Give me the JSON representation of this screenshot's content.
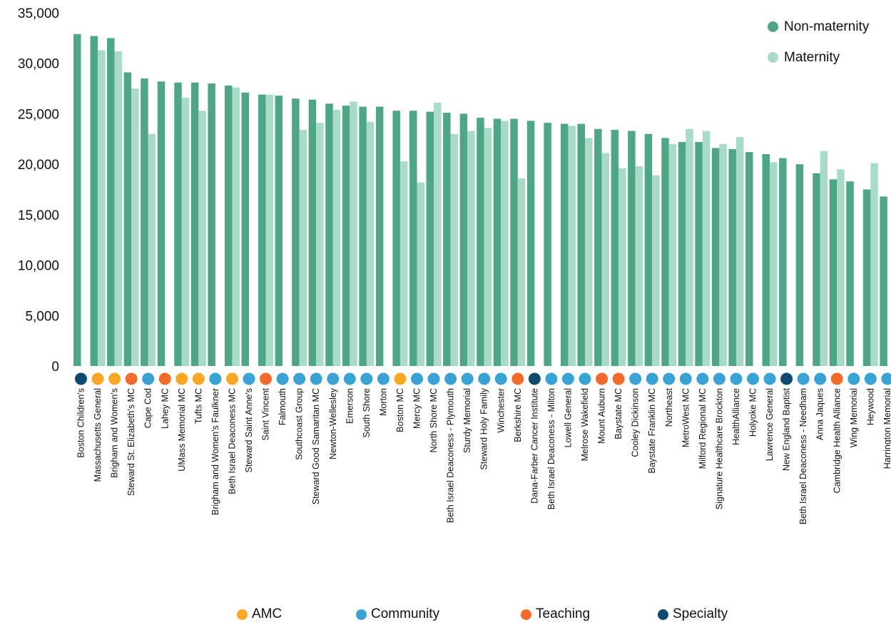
{
  "colors": {
    "non_maternity": "#4fa687",
    "maternity": "#a8dcc8",
    "AMC": "#f9a826",
    "Community": "#3aa3d3",
    "Teaching": "#f26b2c",
    "Specialty": "#0d4a6e"
  },
  "legend_series": [
    {
      "key": "non_maternity",
      "label": "Non-maternity"
    },
    {
      "key": "maternity",
      "label": "Maternity"
    }
  ],
  "legend_types": [
    {
      "key": "AMC",
      "label": "AMC"
    },
    {
      "key": "Community",
      "label": "Community"
    },
    {
      "key": "Teaching",
      "label": "Teaching"
    },
    {
      "key": "Specialty",
      "label": "Specialty"
    }
  ],
  "chart_data": {
    "type": "bar",
    "ylim": [
      0,
      35000
    ],
    "yticks": [
      0,
      5000,
      10000,
      15000,
      20000,
      25000,
      30000,
      35000
    ],
    "ytick_labels": [
      "0",
      "5,000",
      "10,000",
      "15,000",
      "20,000",
      "25,000",
      "30,000",
      "35,000"
    ],
    "grid": false,
    "legend_position": "top-right",
    "categories": [
      "Boston Children's",
      "Massachusetts General",
      "Brigham and Women's",
      "Steward St. Elizabeth's MC",
      "Cape Cod",
      "Lahey  MC",
      "UMass Memorial MC",
      "Tufts MC",
      "Brigham and Women's Faulkner",
      "Beth Israel Deaconess MC",
      "Steward Saint Anne's",
      "Saint Vincent",
      "Falmouth",
      "Southcoast Group",
      "Steward Good Samaritan MC",
      "Newton-Wellesley",
      "Emerson",
      "South Shore",
      "Morton",
      "Boston MC",
      "Mercy MC",
      "North Shore MC",
      "Beth Israel Deaconess - Plymouth",
      "Sturdy Memorial",
      "Steward Holy Family",
      "Winchester",
      "Berkshire MC",
      "Dana-Farber Cancer Institute",
      "Beth Israel Deaconess - Milton",
      "Lowell General",
      "Melrose Wakefield",
      "Mount Auburn",
      "Baystate MC",
      "Cooley Dickinson",
      "Baystate Franklin MC",
      "Northeast",
      "MetroWest MC",
      "Milford Regional MC",
      "Signature Healthcare Brockton",
      "HealthAlliance",
      "Holyoke MC",
      "Lawrence General",
      "New England Baptist",
      "Beth Israel Deaconess - Needham",
      "Anna Jaques",
      "Cambridge Health Alliance",
      "Wing Memorial",
      "Heywood",
      "Harrington Memorial"
    ],
    "hospital_types": [
      "Specialty",
      "AMC",
      "AMC",
      "Teaching",
      "Community",
      "Teaching",
      "AMC",
      "AMC",
      "Community",
      "AMC",
      "Community",
      "Teaching",
      "Community",
      "Community",
      "Community",
      "Community",
      "Community",
      "Community",
      "Community",
      "AMC",
      "Community",
      "Community",
      "Community",
      "Community",
      "Community",
      "Community",
      "Teaching",
      "Specialty",
      "Community",
      "Community",
      "Community",
      "Teaching",
      "Teaching",
      "Community",
      "Community",
      "Community",
      "Community",
      "Community",
      "Community",
      "Community",
      "Community",
      "Community",
      "Specialty",
      "Community",
      "Community",
      "Teaching",
      "Community",
      "Community",
      "Community"
    ],
    "series": [
      {
        "name": "Non-maternity",
        "key": "non_maternity",
        "values": [
          32900,
          32700,
          32500,
          29100,
          28500,
          28200,
          28100,
          28100,
          28000,
          27800,
          27100,
          26900,
          26800,
          26500,
          26400,
          26000,
          25800,
          25700,
          25700,
          25300,
          25300,
          25200,
          25100,
          25000,
          24600,
          24500,
          24500,
          24300,
          24100,
          24000,
          24000,
          23500,
          23400,
          23300,
          23000,
          22600,
          22200,
          22200,
          21600,
          21500,
          21200,
          21000,
          20600,
          20000,
          19100,
          18500,
          18300,
          17500,
          16800
        ]
      },
      {
        "name": "Maternity",
        "key": "maternity",
        "values": [
          null,
          31300,
          31200,
          27500,
          23000,
          null,
          26600,
          25300,
          null,
          27600,
          null,
          26900,
          null,
          23400,
          24100,
          25400,
          26200,
          24200,
          null,
          20300,
          18200,
          26100,
          23000,
          23300,
          23600,
          24300,
          18600,
          null,
          null,
          23800,
          22600,
          21100,
          19600,
          19800,
          18900,
          22000,
          23500,
          23300,
          22000,
          22700,
          null,
          20200,
          null,
          null,
          21300,
          19500,
          null,
          20100,
          null
        ]
      }
    ]
  }
}
